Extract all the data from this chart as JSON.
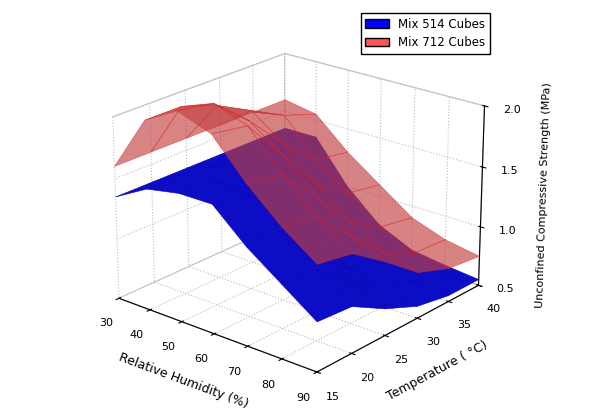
{
  "title": "",
  "xlabel": "Relative Humidity (%)",
  "ylabel": "Temperature ( °C)",
  "zlabel": "Unconfined Compressive Strength (MPa)",
  "rh_values": [
    30,
    40,
    50,
    60,
    70,
    80,
    90
  ],
  "temp_values": [
    15,
    20,
    25,
    30,
    35,
    40
  ],
  "mix514_data": [
    [
      1.35,
      1.35,
      1.35,
      1.35,
      1.35,
      1.35
    ],
    [
      1.5,
      1.5,
      1.45,
      1.4,
      1.35,
      1.35
    ],
    [
      1.55,
      1.52,
      1.35,
      1.15,
      1.0,
      1.0
    ],
    [
      1.55,
      1.5,
      1.2,
      0.9,
      0.75,
      0.75
    ],
    [
      1.3,
      1.28,
      1.0,
      0.72,
      0.62,
      0.62
    ],
    [
      1.1,
      1.08,
      0.85,
      0.65,
      0.58,
      0.58
    ],
    [
      0.9,
      0.88,
      0.72,
      0.6,
      0.55,
      0.55
    ]
  ],
  "mix712_data": [
    [
      1.6,
      1.6,
      1.6,
      1.6,
      1.6,
      1.6
    ],
    [
      2.05,
      2.05,
      1.95,
      1.8,
      1.65,
      1.55
    ],
    [
      2.2,
      2.15,
      1.9,
      1.6,
      1.35,
      1.3
    ],
    [
      2.1,
      2.05,
      1.7,
      1.35,
      1.15,
      1.1
    ],
    [
      1.8,
      1.75,
      1.45,
      1.12,
      0.95,
      0.9
    ],
    [
      1.55,
      1.5,
      1.22,
      0.95,
      0.82,
      0.8
    ],
    [
      1.35,
      1.3,
      1.1,
      0.88,
      0.78,
      0.75
    ]
  ],
  "color_blue": "#0000FF",
  "color_red": "#FF5555",
  "alpha_blue": 0.95,
  "alpha_red": 0.65,
  "zlim": [
    0.5,
    2.0
  ],
  "zticks": [
    0.5,
    1.0,
    1.5,
    2.0
  ],
  "legend_labels": [
    "Mix 514 Cubes",
    "Mix 712 Cubes"
  ],
  "elev": 22,
  "azim": -50,
  "figsize": [
    5.89,
    4.17
  ],
  "dpi": 100
}
